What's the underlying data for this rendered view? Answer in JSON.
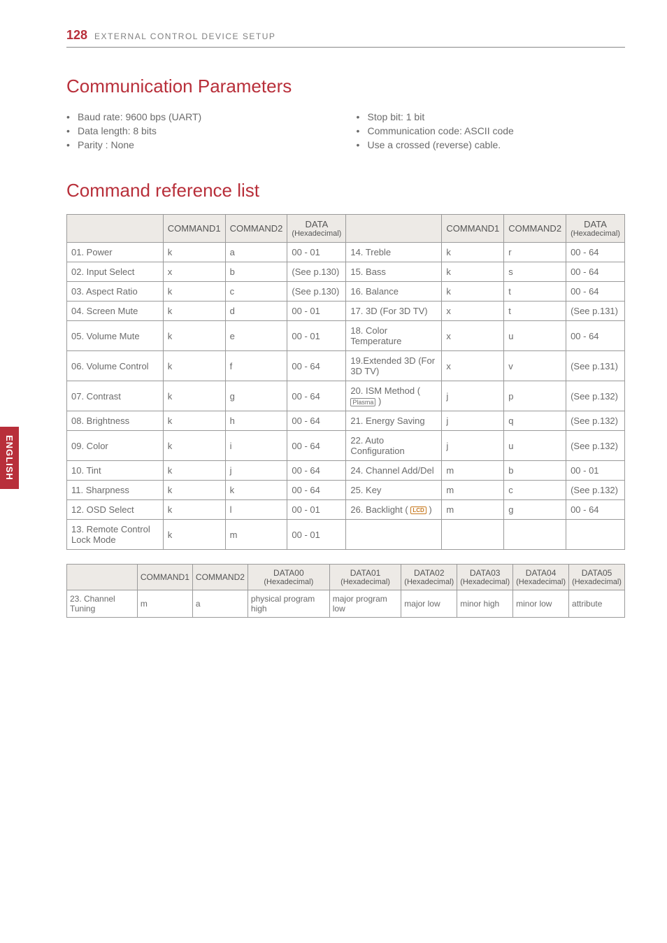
{
  "header": {
    "page_number": "128",
    "title": "EXTERNAL CONTROL DEVICE SETUP"
  },
  "side_tab": "ENGLISH",
  "section1": {
    "heading": "Communication Parameters",
    "left_bullets": [
      "Baud rate: 9600 bps (UART)",
      "Data length: 8 bits",
      "Parity : None"
    ],
    "right_bullets": [
      "Stop bit: 1 bit",
      "Communication code: ASCII code",
      "Use a crossed (reverse) cable."
    ]
  },
  "section2": {
    "heading": "Command reference list"
  },
  "table1": {
    "headers": {
      "blank": "",
      "cmd1": "COMMAND1",
      "cmd2": "COMMAND2",
      "data": "DATA",
      "data_sub": "(Hexadecimal)"
    },
    "rows_left": [
      {
        "name": "01. Power",
        "c1": "k",
        "c2": "a",
        "d": "00 - 01"
      },
      {
        "name": "02. Input Select",
        "c1": "x",
        "c2": "b",
        "d": "(See p.130)"
      },
      {
        "name": "03. Aspect Ratio",
        "c1": "k",
        "c2": "c",
        "d": "(See p.130)"
      },
      {
        "name": "04. Screen Mute",
        "c1": "k",
        "c2": "d",
        "d": "00 - 01"
      },
      {
        "name": "05. Volume Mute",
        "c1": "k",
        "c2": "e",
        "d": "00 - 01"
      },
      {
        "name": "06. Volume Control",
        "c1": "k",
        "c2": "f",
        "d": "00 - 64"
      },
      {
        "name": "07. Contrast",
        "c1": "k",
        "c2": "g",
        "d": "00 - 64"
      },
      {
        "name": "08. Brightness",
        "c1": "k",
        "c2": "h",
        "d": "00 - 64"
      },
      {
        "name": "09. Color",
        "c1": "k",
        "c2": "i",
        "d": "00 - 64"
      },
      {
        "name": "10. Tint",
        "c1": "k",
        "c2": "j",
        "d": "00 - 64"
      },
      {
        "name": "11. Sharpness",
        "c1": "k",
        "c2": "k",
        "d": "00 - 64"
      },
      {
        "name": "12. OSD Select",
        "c1": "k",
        "c2": "l",
        "d": "00 - 01"
      },
      {
        "name": "13. Remote Control Lock Mode",
        "c1": "k",
        "c2": "m",
        "d": "00 - 01"
      }
    ],
    "rows_right": [
      {
        "name": "14. Treble",
        "c1": "k",
        "c2": "r",
        "d": "00 - 64"
      },
      {
        "name": "15. Bass",
        "c1": "k",
        "c2": "s",
        "d": "00 - 64"
      },
      {
        "name": "16. Balance",
        "c1": "k",
        "c2": "t",
        "d": "00 - 64"
      },
      {
        "name": "17. 3D (For 3D TV)",
        "c1": "x",
        "c2": "t",
        "d": "(See p.131)"
      },
      {
        "name": "18. Color Temperature",
        "c1": "x",
        "c2": "u",
        "d": "00 - 64"
      },
      {
        "name": "19.Extended 3D (For 3D TV)",
        "c1": "x",
        "c2": "v",
        "d": "(See p.131)"
      },
      {
        "name": "20. ISM Method (",
        "icon": "plasma",
        "name_after": ")",
        "c1": "j",
        "c2": "p",
        "d": "(See p.132)"
      },
      {
        "name": "21. Energy Saving",
        "c1": "j",
        "c2": "q",
        "d": "(See p.132)"
      },
      {
        "name": "22. Auto Configuration",
        "c1": "j",
        "c2": "u",
        "d": "(See p.132)"
      },
      {
        "name": "24. Channel Add/Del",
        "c1": "m",
        "c2": "b",
        "d": "00 - 01"
      },
      {
        "name": "25. Key",
        "c1": "m",
        "c2": "c",
        "d": "(See p.132)"
      },
      {
        "name": "26. Backlight (",
        "icon": "lcd",
        "name_after": ")",
        "c1": "m",
        "c2": "g",
        "d": "00 - 64"
      },
      {
        "name": "",
        "c1": "",
        "c2": "",
        "d": ""
      }
    ]
  },
  "table2": {
    "headers": {
      "blank": "",
      "cmd1": "COMMAND1",
      "cmd2": "COMMAND2",
      "d00": "DATA00",
      "d01": "DATA01",
      "d02": "DATA02",
      "d03": "DATA03",
      "d04": "DATA04",
      "d05": "DATA05",
      "sub": "(Hexadecimal)"
    },
    "row": {
      "name": "23. Channel Tuning",
      "c1": "m",
      "c2": "a",
      "d00": "physical program high",
      "d01": "major program low",
      "d02": "major low",
      "d03": "minor high",
      "d04": "minor low",
      "d05": "attribute"
    }
  },
  "colors": {
    "accent": "#b82f3a",
    "text": "#6b6b6b",
    "border": "#9a9a9a",
    "th_bg": "#edeae6",
    "lcd": "#c7791f"
  }
}
